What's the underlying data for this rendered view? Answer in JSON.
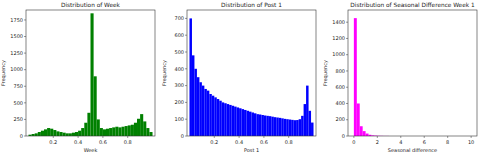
{
  "chart_data": [
    {
      "type": "histogram",
      "title": "Distribution of Week",
      "x_label": "Week",
      "y_label": "Frequency",
      "color": "#008000",
      "bins": [
        0,
        0.025,
        0.05,
        0.075,
        0.1,
        0.125,
        0.15,
        0.175,
        0.2,
        0.225,
        0.25,
        0.275,
        0.3,
        0.325,
        0.35,
        0.375,
        0.4,
        0.425,
        0.45,
        0.475,
        0.5,
        0.525,
        0.55,
        0.575,
        0.6,
        0.625,
        0.65,
        0.675,
        0.7,
        0.725,
        0.75,
        0.775,
        0.8,
        0.825,
        0.85,
        0.875,
        0.9,
        0.925,
        0.95,
        0.975,
        1
      ],
      "counts": [
        20,
        30,
        40,
        60,
        80,
        100,
        120,
        110,
        90,
        70,
        60,
        50,
        40,
        40,
        50,
        60,
        80,
        120,
        200,
        350,
        1850,
        900,
        250,
        120,
        100,
        110,
        120,
        130,
        140,
        130,
        140,
        150,
        160,
        170,
        200,
        260,
        330,
        220,
        120,
        60
      ],
      "xlim": [
        -0.02,
        1.02
      ],
      "ylim": [
        0,
        1900
      ],
      "xticks": [
        0.2,
        0.4,
        0.6,
        0.8
      ],
      "yticks": [
        0,
        250,
        500,
        750,
        1000,
        1250,
        1500,
        1750
      ],
      "grid": false
    },
    {
      "type": "histogram",
      "title": "Distribution of Post 1",
      "x_label": "Post 1",
      "y_label": "Frequency",
      "color": "#0000ff",
      "bins": [
        0,
        0.02,
        0.04,
        0.06,
        0.08,
        0.1,
        0.12,
        0.14,
        0.16,
        0.18,
        0.2,
        0.22,
        0.24,
        0.26,
        0.28,
        0.3,
        0.32,
        0.34,
        0.36,
        0.38,
        0.4,
        0.42,
        0.44,
        0.46,
        0.48,
        0.5,
        0.52,
        0.54,
        0.56,
        0.58,
        0.6,
        0.62,
        0.64,
        0.66,
        0.68,
        0.7,
        0.72,
        0.74,
        0.76,
        0.78,
        0.8,
        0.82,
        0.84,
        0.86,
        0.88,
        0.9,
        0.92,
        0.94,
        0.96,
        0.98,
        1
      ],
      "counts": [
        700,
        480,
        400,
        350,
        320,
        300,
        280,
        270,
        250,
        240,
        230,
        220,
        210,
        200,
        195,
        190,
        185,
        180,
        175,
        170,
        165,
        160,
        155,
        150,
        145,
        140,
        135,
        130,
        128,
        125,
        122,
        120,
        118,
        115,
        112,
        110,
        108,
        105,
        102,
        100,
        98,
        96,
        94,
        95,
        100,
        120,
        190,
        300,
        150,
        80
      ],
      "xlim": [
        -0.02,
        1.02
      ],
      "ylim": [
        0,
        750
      ],
      "xticks": [
        0.2,
        0.4,
        0.6,
        0.8
      ],
      "yticks": [
        0,
        100,
        200,
        300,
        400,
        500,
        600,
        700
      ],
      "grid": false
    },
    {
      "type": "histogram",
      "title": "Distribution of Seasonal Difference Week 1",
      "x_label": "Seasonal difference",
      "y_label": "Frequency",
      "color": "#ff00ff",
      "bins": [
        0,
        0.25,
        0.5,
        0.75,
        1,
        1.25,
        1.5,
        1.75,
        2,
        2.25,
        2.5,
        2.75,
        3
      ],
      "counts": [
        1450,
        400,
        120,
        60,
        30,
        15,
        8,
        5,
        3,
        2,
        1,
        1
      ],
      "xlim": [
        -0.5,
        10.5
      ],
      "ylim": [
        0,
        1550
      ],
      "xticks": [
        0,
        2,
        4,
        6,
        8,
        10
      ],
      "yticks": [
        0,
        200,
        400,
        600,
        800,
        1000,
        1200,
        1400
      ],
      "grid": false
    }
  ]
}
